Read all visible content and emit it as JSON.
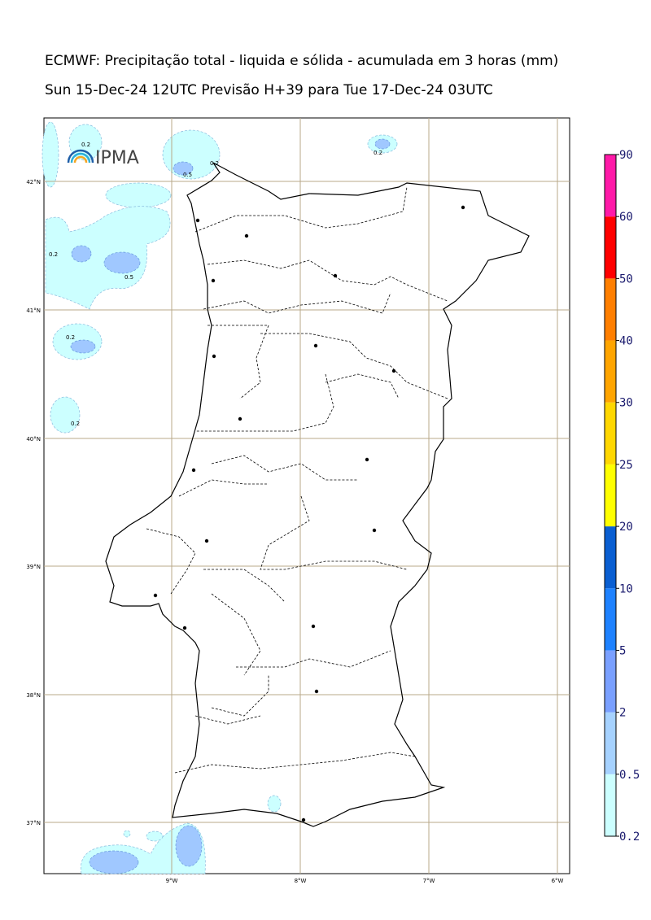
{
  "header": {
    "title": "ECMWF: Precipitação total - liquida e sólida - acumulada em 3 horas (mm)",
    "subtitle": "Sun 15-Dec-24 12UTC Previsão H+39 para Tue 17-Dec-24 03UTC"
  },
  "logo": "IPMA",
  "map": {
    "lat_labels": [
      "42°N",
      "41°N",
      "40°N",
      "39°N",
      "38°N",
      "37°N"
    ],
    "lon_labels": [
      "9°W",
      "8°W",
      "7°W",
      "6°W"
    ],
    "contour_labels": [
      "0.2",
      "0.5",
      "0.2",
      "0.2",
      "0.5",
      "0.2",
      "0.2",
      "0.2"
    ]
  },
  "colorbar": {
    "levels": [
      0.2,
      0.5,
      2,
      5,
      10,
      20,
      25,
      30,
      40,
      50,
      60,
      90
    ],
    "colors": [
      "#ccffff",
      "#a6d2ff",
      "#7aa0ff",
      "#1e82ff",
      "#0a5fd2",
      "#ffff00",
      "#ffd700",
      "#ffa500",
      "#ff7f00",
      "#ff0000",
      "#ff1aa8"
    ]
  }
}
